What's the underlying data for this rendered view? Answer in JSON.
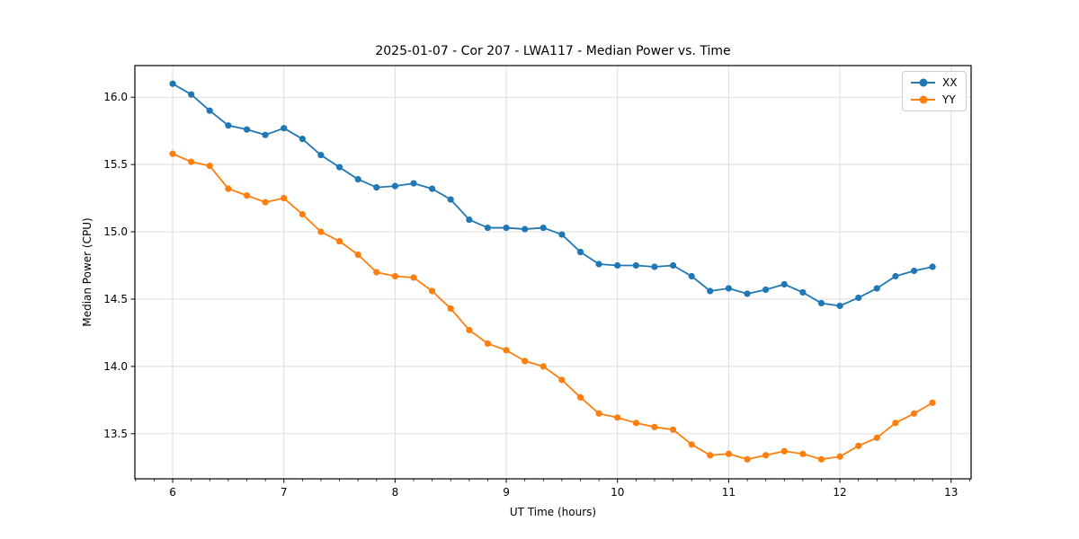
{
  "chart_data": {
    "type": "line",
    "title": "2025-01-07 - Cor 207 - LWA117 - Median Power vs. Time",
    "xlabel": "UT Time (hours)",
    "ylabel": "Median Power (CPU)",
    "xlim": [
      5.66,
      13.18
    ],
    "ylim": [
      13.165,
      16.235
    ],
    "xticks": [
      6,
      7,
      8,
      9,
      10,
      11,
      12,
      13
    ],
    "yticks": [
      13.5,
      14.0,
      14.5,
      15.0,
      15.5,
      16.0
    ],
    "x_minor_step": 0.16667,
    "grid": true,
    "legend_position": "upper right",
    "x": [
      6.0,
      6.167,
      6.333,
      6.5,
      6.667,
      6.833,
      7.0,
      7.167,
      7.333,
      7.5,
      7.667,
      7.833,
      8.0,
      8.167,
      8.333,
      8.5,
      8.667,
      8.833,
      9.0,
      9.167,
      9.333,
      9.5,
      9.667,
      9.833,
      10.0,
      10.167,
      10.333,
      10.5,
      10.667,
      10.833,
      11.0,
      11.167,
      11.333,
      11.5,
      11.667,
      11.833,
      12.0,
      12.167,
      12.333,
      12.5,
      12.667,
      12.833
    ],
    "series": [
      {
        "name": "XX",
        "color": "#1f77b4",
        "values": [
          16.1,
          16.02,
          15.9,
          15.79,
          15.76,
          15.72,
          15.77,
          15.69,
          15.57,
          15.48,
          15.39,
          15.33,
          15.34,
          15.36,
          15.32,
          15.24,
          15.09,
          15.03,
          15.03,
          15.02,
          15.03,
          14.98,
          14.85,
          14.76,
          14.75,
          14.75,
          14.74,
          14.75,
          14.67,
          14.56,
          14.58,
          14.54,
          14.57,
          14.61,
          14.55,
          14.47,
          14.45,
          14.51,
          14.58,
          14.67,
          14.71,
          14.74
        ]
      },
      {
        "name": "YY",
        "color": "#ff7f0e",
        "values": [
          15.58,
          15.52,
          15.49,
          15.32,
          15.27,
          15.22,
          15.25,
          15.13,
          15.0,
          14.93,
          14.83,
          14.7,
          14.67,
          14.66,
          14.56,
          14.43,
          14.27,
          14.17,
          14.12,
          14.04,
          14.0,
          13.9,
          13.77,
          13.65,
          13.62,
          13.58,
          13.55,
          13.53,
          13.42,
          13.34,
          13.35,
          13.31,
          13.34,
          13.37,
          13.35,
          13.31,
          13.33,
          13.41,
          13.47,
          13.58,
          13.65,
          13.73
        ]
      }
    ]
  },
  "colors": {
    "grid": "#d9d9d9",
    "spine": "#000000",
    "tick": "#000000",
    "background": "#ffffff"
  }
}
